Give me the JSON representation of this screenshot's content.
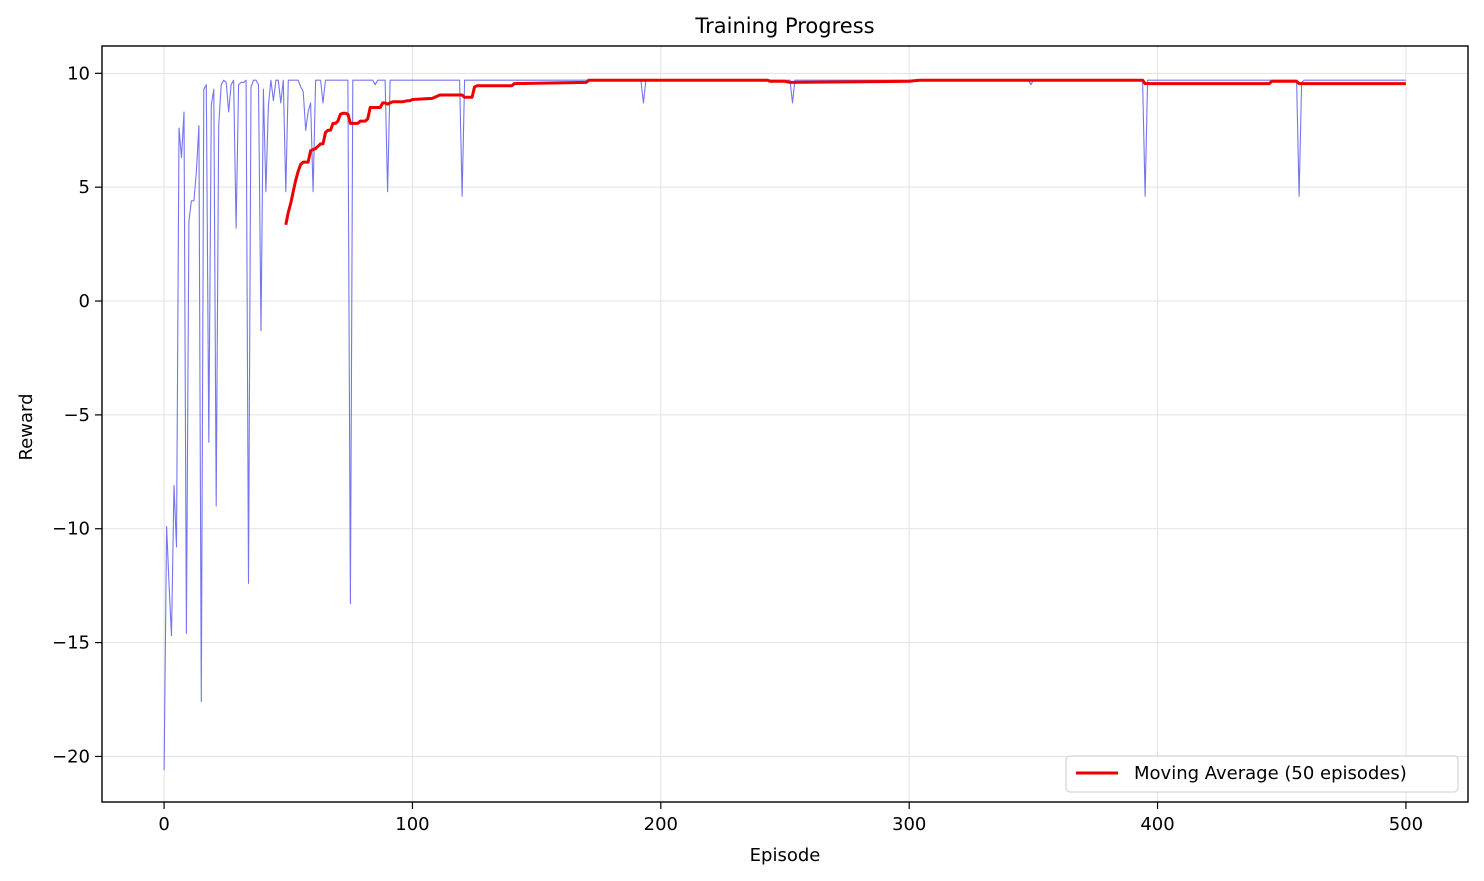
{
  "chart_data": {
    "type": "line",
    "title": "Training Progress",
    "xlabel": "Episode",
    "ylabel": "Reward",
    "xlim": [
      -25,
      525
    ],
    "ylim": [
      -22,
      11.2
    ],
    "xticks": [
      0,
      100,
      200,
      300,
      400,
      500
    ],
    "yticks": [
      -20,
      -15,
      -10,
      -5,
      0,
      5,
      10
    ],
    "xtick_labels": [
      "0",
      "100",
      "200",
      "300",
      "400",
      "500"
    ],
    "ytick_labels": [
      "−20",
      "−15",
      "−10",
      "−5",
      "0",
      "5",
      "10"
    ],
    "grid": true,
    "legend_position": "bottom-right",
    "series": [
      {
        "key": "raw",
        "color": "#6666ee",
        "points": [
          [
            0,
            -20.6
          ],
          [
            1,
            -9.9
          ],
          [
            2,
            -12.5
          ],
          [
            3,
            -14.7
          ],
          [
            4,
            -8.1
          ],
          [
            5,
            -10.8
          ],
          [
            6,
            7.6
          ],
          [
            7,
            6.3
          ],
          [
            8,
            8.3
          ],
          [
            9,
            -14.6
          ],
          [
            10,
            3.5
          ],
          [
            11,
            4.4
          ],
          [
            12,
            4.4
          ],
          [
            13,
            5.7
          ],
          [
            14,
            7.7
          ],
          [
            15,
            -17.6
          ],
          [
            16,
            9.3
          ],
          [
            17,
            9.5
          ],
          [
            18,
            -6.2
          ],
          [
            19,
            8.6
          ],
          [
            20,
            9.3
          ],
          [
            21,
            -9.0
          ],
          [
            22,
            7.7
          ],
          [
            23,
            9.5
          ],
          [
            24,
            9.7
          ],
          [
            25,
            9.6
          ],
          [
            26,
            8.3
          ],
          [
            27,
            9.5
          ],
          [
            28,
            9.7
          ],
          [
            29,
            3.2
          ],
          [
            30,
            9.5
          ],
          [
            31,
            9.6
          ],
          [
            32,
            9.6
          ],
          [
            33,
            9.7
          ],
          [
            34,
            -12.4
          ],
          [
            35,
            9.4
          ],
          [
            36,
            9.7
          ],
          [
            37,
            9.7
          ],
          [
            38,
            9.5
          ],
          [
            39,
            -1.3
          ],
          [
            40,
            9.3
          ],
          [
            41,
            4.8
          ],
          [
            42,
            8.6
          ],
          [
            43,
            9.7
          ],
          [
            44,
            8.8
          ],
          [
            45,
            9.7
          ],
          [
            46,
            9.7
          ],
          [
            47,
            8.7
          ],
          [
            48,
            9.7
          ],
          [
            49,
            4.8
          ],
          [
            50,
            9.7
          ],
          [
            51,
            9.7
          ],
          [
            52,
            9.7
          ],
          [
            53,
            9.7
          ],
          [
            54,
            9.7
          ],
          [
            55,
            9.4
          ],
          [
            56,
            9.2
          ],
          [
            57,
            7.5
          ],
          [
            58,
            8.3
          ],
          [
            59,
            8.7
          ],
          [
            60,
            4.8
          ],
          [
            61,
            9.7
          ],
          [
            62,
            9.7
          ],
          [
            63,
            9.7
          ],
          [
            64,
            8.7
          ],
          [
            65,
            9.7
          ],
          [
            66,
            9.7
          ],
          [
            67,
            9.7
          ],
          [
            74,
            9.7
          ],
          [
            75,
            -13.3
          ],
          [
            76,
            9.7
          ],
          [
            84,
            9.7
          ],
          [
            85,
            9.5
          ],
          [
            86,
            9.7
          ],
          [
            89,
            9.7
          ],
          [
            90,
            4.8
          ],
          [
            91,
            9.7
          ],
          [
            119,
            9.7
          ],
          [
            120,
            4.6
          ],
          [
            121,
            9.7
          ],
          [
            192,
            9.7
          ],
          [
            193,
            8.7
          ],
          [
            194,
            9.7
          ],
          [
            252,
            9.7
          ],
          [
            253,
            8.7
          ],
          [
            254,
            9.7
          ],
          [
            348,
            9.7
          ],
          [
            349,
            9.5
          ],
          [
            350,
            9.7
          ],
          [
            394,
            9.7
          ],
          [
            395,
            4.6
          ],
          [
            396,
            9.7
          ],
          [
            456,
            9.7
          ],
          [
            457,
            4.6
          ],
          [
            458,
            9.6
          ],
          [
            459,
            9.7
          ],
          [
            500,
            9.7
          ]
        ]
      },
      {
        "key": "ma",
        "name": "Moving Average (50 episodes)",
        "color": "#ee0000",
        "points": [
          [
            49,
            3.35
          ],
          [
            50,
            3.9
          ],
          [
            51,
            4.3
          ],
          [
            52,
            4.8
          ],
          [
            53,
            5.3
          ],
          [
            54,
            5.7
          ],
          [
            55,
            6.0
          ],
          [
            56,
            6.1
          ],
          [
            57,
            6.1
          ],
          [
            58,
            6.1
          ],
          [
            59,
            6.6
          ],
          [
            61,
            6.7
          ],
          [
            62,
            6.8
          ],
          [
            63,
            6.9
          ],
          [
            64,
            6.9
          ],
          [
            65,
            7.4
          ],
          [
            66,
            7.5
          ],
          [
            67,
            7.5
          ],
          [
            68,
            7.8
          ],
          [
            69,
            7.8
          ],
          [
            70,
            7.9
          ],
          [
            71,
            8.2
          ],
          [
            72,
            8.25
          ],
          [
            73,
            8.25
          ],
          [
            74,
            8.2
          ],
          [
            75,
            7.8
          ],
          [
            76,
            7.8
          ],
          [
            77,
            7.8
          ],
          [
            78,
            7.8
          ],
          [
            79,
            7.9
          ],
          [
            80,
            7.9
          ],
          [
            81,
            7.9
          ],
          [
            82,
            8.0
          ],
          [
            83,
            8.5
          ],
          [
            85,
            8.5
          ],
          [
            86,
            8.5
          ],
          [
            87,
            8.5
          ],
          [
            88,
            8.7
          ],
          [
            89,
            8.7
          ],
          [
            90,
            8.65
          ],
          [
            92,
            8.75
          ],
          [
            96,
            8.75
          ],
          [
            98,
            8.8
          ],
          [
            99,
            8.8
          ],
          [
            100,
            8.85
          ],
          [
            108,
            8.9
          ],
          [
            110,
            9.0
          ],
          [
            111,
            9.05
          ],
          [
            120,
            9.05
          ],
          [
            121,
            8.95
          ],
          [
            124,
            8.95
          ],
          [
            125,
            9.4
          ],
          [
            126,
            9.45
          ],
          [
            140,
            9.45
          ],
          [
            141,
            9.55
          ],
          [
            170,
            9.6
          ],
          [
            171,
            9.7
          ],
          [
            243,
            9.7
          ],
          [
            244,
            9.65
          ],
          [
            250,
            9.65
          ],
          [
            252,
            9.6
          ],
          [
            300,
            9.65
          ],
          [
            304,
            9.7
          ],
          [
            394,
            9.7
          ],
          [
            395,
            9.55
          ],
          [
            445,
            9.55
          ],
          [
            446,
            9.65
          ],
          [
            456,
            9.65
          ],
          [
            457,
            9.55
          ],
          [
            500,
            9.55
          ]
        ]
      }
    ]
  }
}
